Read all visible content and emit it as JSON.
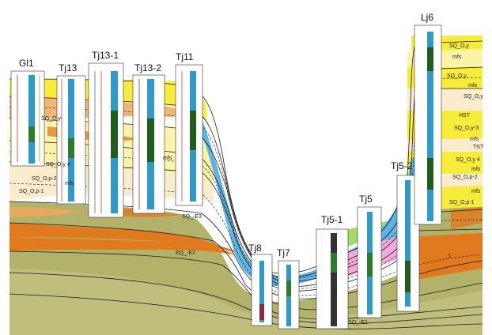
{
  "colors": {
    "olive": "#b3b26a",
    "olive_light": "#c9c88a",
    "orange": "#e07a1f",
    "orange_light": "#f0a85c",
    "yellow": "#f7ec3a",
    "yellow_pale": "#fbf3a8",
    "cream": "#fbeccd",
    "blue": "#5fb4e4",
    "green": "#a8d86a",
    "pink": "#f2a8d8",
    "line": "#1a1a1a"
  },
  "wells": [
    {
      "id": "gl1",
      "label": "Gl1"
    },
    {
      "id": "tj13",
      "label": "Tj13"
    },
    {
      "id": "tj13-1",
      "label": "Tj13-1"
    },
    {
      "id": "tj13-2",
      "label": "Tj13-2"
    },
    {
      "id": "tj11",
      "label": "Tj11"
    },
    {
      "id": "tj8",
      "label": "Tj8"
    },
    {
      "id": "tj7",
      "label": "Tj7"
    },
    {
      "id": "tj5-1",
      "label": "Tj5-1"
    },
    {
      "id": "tj5",
      "label": "Tj5"
    },
    {
      "id": "tj5-2",
      "label": "Tj5-2"
    },
    {
      "id": "lj6",
      "label": "Lj6"
    }
  ],
  "sequence_labels": [
    {
      "id": "sq-oy",
      "text": "SQ_O,y"
    },
    {
      "id": "mfs-1",
      "text": "mfs"
    },
    {
      "id": "sq-oy-b",
      "text": "SQ_O,y"
    },
    {
      "id": "mfs-2",
      "text": "mfs"
    },
    {
      "id": "sq-oy-c",
      "text": "SQ_O,y"
    },
    {
      "id": "hst",
      "text": "HST"
    },
    {
      "id": "sq-oy-3",
      "text": "SQ_O,y-3"
    },
    {
      "id": "mfs-3",
      "text": "mfs"
    },
    {
      "id": "tst",
      "text": "TST"
    },
    {
      "id": "sq-oy-4-right",
      "text": "SQ_O,y 4"
    },
    {
      "id": "mfs-4",
      "text": "mfs"
    },
    {
      "id": "sq-op-2-right",
      "text": "SQ_O,p-2"
    },
    {
      "id": "mfs-5",
      "text": "mfs"
    },
    {
      "id": "sq-op-1-right",
      "text": "SQ_O,p-1"
    },
    {
      "id": "sq-oy-left",
      "text": "SQ_O,y-"
    },
    {
      "id": "sq-oy-4-left",
      "text": "SQ_O,y 4"
    },
    {
      "id": "sq-op-2-left",
      "text": "SQ_O,p-2"
    },
    {
      "id": "mfs-left",
      "text": "mfs"
    },
    {
      "id": "sq-op-1-left",
      "text": "SQ_O,p-1"
    },
    {
      "id": "mfs-mid",
      "text": "mfs"
    },
    {
      "id": "sq-e3",
      "text": "SQ_-E3"
    },
    {
      "id": "sq-e2",
      "text": "EQ_-E2"
    },
    {
      "id": "sq-e1",
      "text": "SQ_-E1"
    },
    {
      "id": "e1-right",
      "text": "1"
    }
  ]
}
